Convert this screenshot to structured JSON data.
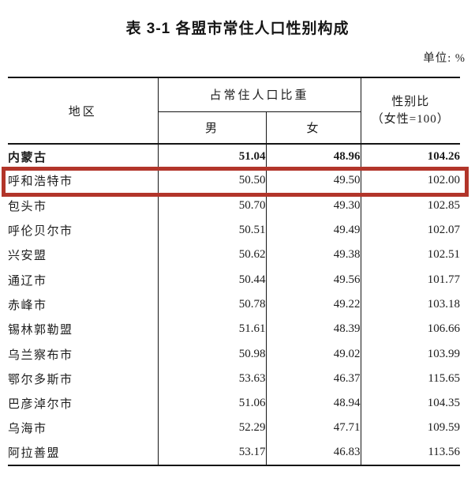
{
  "page": {
    "title": "表 3-1 各盟市常住人口性别构成",
    "unit_label": "单位: %"
  },
  "table": {
    "header": {
      "region": "地区",
      "share_group": "占常住人口比重",
      "male": "男",
      "female": "女",
      "ratio_line1": "性别比",
      "ratio_line2": "（女性=100）"
    },
    "rows": [
      {
        "region": "内蒙古",
        "male": "51.04",
        "female": "48.96",
        "ratio": "104.26",
        "bold": true,
        "highlighted": false
      },
      {
        "region": "呼和浩特市",
        "male": "50.50",
        "female": "49.50",
        "ratio": "102.00",
        "bold": false,
        "highlighted": true
      },
      {
        "region": "包头市",
        "male": "50.70",
        "female": "49.30",
        "ratio": "102.85",
        "bold": false,
        "highlighted": false
      },
      {
        "region": "呼伦贝尔市",
        "male": "50.51",
        "female": "49.49",
        "ratio": "102.07",
        "bold": false,
        "highlighted": false
      },
      {
        "region": "兴安盟",
        "male": "50.62",
        "female": "49.38",
        "ratio": "102.51",
        "bold": false,
        "highlighted": false
      },
      {
        "region": "通辽市",
        "male": "50.44",
        "female": "49.56",
        "ratio": "101.77",
        "bold": false,
        "highlighted": false
      },
      {
        "region": "赤峰市",
        "male": "50.78",
        "female": "49.22",
        "ratio": "103.18",
        "bold": false,
        "highlighted": false
      },
      {
        "region": "锡林郭勒盟",
        "male": "51.61",
        "female": "48.39",
        "ratio": "106.66",
        "bold": false,
        "highlighted": false
      },
      {
        "region": "乌兰察布市",
        "male": "50.98",
        "female": "49.02",
        "ratio": "103.99",
        "bold": false,
        "highlighted": false
      },
      {
        "region": "鄂尔多斯市",
        "male": "53.63",
        "female": "46.37",
        "ratio": "115.65",
        "bold": false,
        "highlighted": false
      },
      {
        "region": "巴彦淖尔市",
        "male": "51.06",
        "female": "48.94",
        "ratio": "104.35",
        "bold": false,
        "highlighted": false
      },
      {
        "region": "乌海市",
        "male": "52.29",
        "female": "47.71",
        "ratio": "109.59",
        "bold": false,
        "highlighted": false
      },
      {
        "region": "阿拉善盟",
        "male": "53.17",
        "female": "46.83",
        "ratio": "113.56",
        "bold": false,
        "highlighted": false
      }
    ]
  },
  "highlight": {
    "target_region": "呼和浩特市",
    "color": "#b2352a"
  }
}
